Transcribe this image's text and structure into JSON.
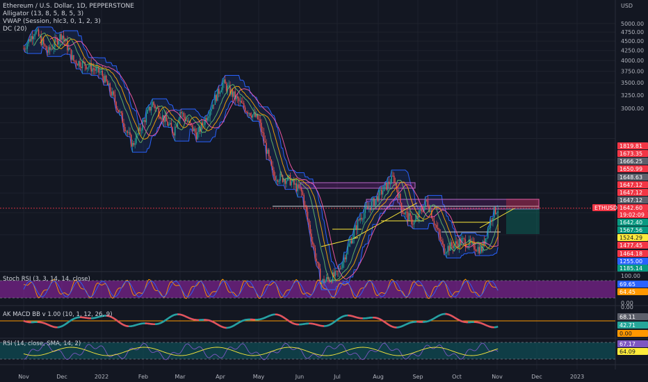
{
  "legend": {
    "symbol": "Ethereum / U.S. Dollar, 1D, PEPPERSTONE",
    "alligator": "Alligator (13, 8, 5, 8, 5, 3)",
    "vwap": "VWAP (Session, hlc3, 0, 1, 2, 3)",
    "dc": "DC (20)"
  },
  "currency": "USD",
  "colors": {
    "bg": "#131722",
    "up": "#26a69a",
    "down": "#ef5350",
    "grid": "#1e222d",
    "dc": "#2962ff",
    "jaw": "#ff5cae",
    "teeth": "#ffaa00",
    "lips": "#66bb6a",
    "stoch_bg": "#9c27b0",
    "rsi_bg": "#0e4e55",
    "rsi_line": "#7e57c2",
    "rsi_ma": "#ffeb3b"
  },
  "chart_data": [
    {
      "type": "candlestick",
      "name": "ETHUSD",
      "y_scale": "log",
      "ylim": [
        1150,
        5300
      ],
      "x_ticks": [
        "Nov",
        "Dec",
        "2022",
        "Feb",
        "Mar",
        "Apr",
        "May",
        "Jun",
        "Jul",
        "Aug",
        "Sep",
        "Oct",
        "Nov",
        "Dec",
        "2023"
      ],
      "y_ticks": [
        5000.0,
        4750.0,
        4500.0,
        4250.0,
        4000.0,
        3750.0,
        3500.0,
        3250.0,
        3000.0
      ],
      "price_anchors": [
        [
          "Nov",
          4300
        ],
        [
          "Nov 10",
          4800
        ],
        [
          "Nov 20",
          4200
        ],
        [
          "Dec 1",
          4700
        ],
        [
          "Dec 10",
          4000
        ],
        [
          "Dec 20",
          3900
        ],
        [
          "Jan 1",
          3700
        ],
        [
          "Jan 10",
          3200
        ],
        [
          "Jan 24",
          2400
        ],
        [
          "Feb 8",
          3100
        ],
        [
          "Feb 24",
          2600
        ],
        [
          "Mar 1",
          2950
        ],
        [
          "Mar 14",
          2550
        ],
        [
          "Apr 3",
          3500
        ],
        [
          "Apr 18",
          3050
        ],
        [
          "May 1",
          2800
        ],
        [
          "May 12",
          2000
        ],
        [
          "May 24",
          1950
        ],
        [
          "Jun 3",
          1800
        ],
        [
          "Jun 18",
          1050
        ],
        [
          "Jul 1",
          1100
        ],
        [
          "Jul 18",
          1550
        ],
        [
          "Jul 28",
          1700
        ],
        [
          "Aug 13",
          1980
        ],
        [
          "Aug 20",
          1620
        ],
        [
          "Aug 29",
          1500
        ],
        [
          "Sep 8",
          1720
        ],
        [
          "Sep 21",
          1280
        ],
        [
          "Oct 5",
          1350
        ],
        [
          "Oct 20",
          1280
        ],
        [
          "Oct 29",
          1600
        ],
        [
          "Nov 2",
          1642.6
        ]
      ],
      "last_price": "1642.60",
      "countdown": "19:02:09",
      "price_tags": [
        {
          "value": "1819.81",
          "color": "#f23645"
        },
        {
          "value": "1673.35",
          "color": "#f23645"
        },
        {
          "value": "1666.25",
          "color": "#5d606b"
        },
        {
          "value": "1650.99",
          "color": "#f23645"
        },
        {
          "value": "1648.63",
          "color": "#5d606b"
        },
        {
          "value": "1647.12",
          "color": "#f23645"
        },
        {
          "value": "1647.12",
          "color": "#f23645"
        },
        {
          "value": "1647.12",
          "color": "#5d606b"
        },
        {
          "value": "1642.40",
          "color": "#089981"
        },
        {
          "value": "1567.56",
          "color": "#089981"
        },
        {
          "value": "1524.29",
          "color": "#ffeb3b"
        },
        {
          "value": "1477.45",
          "color": "#f23645"
        },
        {
          "value": "1464.18",
          "color": "#f23645"
        },
        {
          "value": "1255.00",
          "color": "#2962ff"
        },
        {
          "value": "1185.14",
          "color": "#089981"
        }
      ],
      "symbol_tag": "ETHUSD"
    },
    {
      "type": "line",
      "name": "Stoch RSI",
      "label": "Stoch RSI (3, 3, 14, 14, close)",
      "ylim": [
        0,
        100
      ],
      "y_ticks": [
        100.0,
        0.0
      ],
      "values": [
        "69.65",
        "64.45"
      ]
    },
    {
      "type": "histogram",
      "name": "AK MACD BB",
      "label": "AK MACD BB v 1.00 (10, 1, 12, 26, 9)",
      "y_ticks": [
        "0.00"
      ],
      "values": [
        "68.11",
        "42.71",
        "0.00"
      ]
    },
    {
      "type": "line",
      "name": "RSI",
      "label": "RSI (14, close, SMA, 14, 2)",
      "y_ticks": [],
      "values": [
        "67.17",
        "64.09"
      ]
    }
  ]
}
